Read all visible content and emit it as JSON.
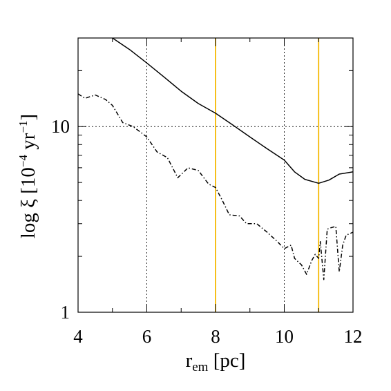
{
  "chart_data": {
    "type": "line",
    "title": "",
    "xlabel": {
      "base": "r",
      "subscript": "em",
      "unit": " [pc]"
    },
    "ylabel": {
      "prefix": "log ξ [10",
      "exponent": "−4",
      "middle": " yr",
      "exponent2": "−1",
      "suffix": "]"
    },
    "xlim": [
      4,
      12
    ],
    "ylim": [
      1,
      30
    ],
    "yscale": "log",
    "x_ticks": [
      "4",
      "6",
      "8",
      "10",
      "12"
    ],
    "y_ticks": [
      "1",
      "10"
    ],
    "grid": false,
    "reference_lines": {
      "dotted_vertical_x": [
        6,
        10
      ],
      "dotted_horizontal_y": [
        10
      ],
      "highlight_vertical_x": [
        8,
        11
      ],
      "highlight_color": "#F5B800"
    },
    "series": [
      {
        "style": "solid",
        "x": [
          5.0,
          5.5,
          6.0,
          6.5,
          7.0,
          7.5,
          8.0,
          8.5,
          9.0,
          9.5,
          10.0,
          10.3,
          10.6,
          11.0,
          11.3,
          11.6,
          12.0
        ],
        "y": [
          30,
          26,
          22,
          18.5,
          15.5,
          13.3,
          11.8,
          10.2,
          8.8,
          7.6,
          6.6,
          5.7,
          5.2,
          4.95,
          5.15,
          5.55,
          5.7
        ]
      },
      {
        "style": "dash-dot",
        "x": [
          4.0,
          4.2,
          4.5,
          4.8,
          5.0,
          5.3,
          5.6,
          6.0,
          6.3,
          6.6,
          6.9,
          7.2,
          7.5,
          7.8,
          8.0,
          8.2,
          8.4,
          8.7,
          8.9,
          9.2,
          9.5,
          9.8,
          10.0,
          10.2,
          10.3,
          10.5,
          10.65,
          10.8,
          10.9,
          11.0,
          11.05,
          11.15,
          11.25,
          11.35,
          11.5,
          11.6,
          11.7,
          11.8,
          12.0
        ],
        "y": [
          15,
          14.2,
          14.8,
          14.0,
          13.0,
          10.5,
          10.0,
          8.8,
          7.3,
          6.8,
          5.3,
          6.0,
          5.8,
          4.9,
          4.7,
          4.0,
          3.35,
          3.3,
          3.0,
          3.0,
          2.7,
          2.4,
          2.2,
          2.3,
          1.95,
          1.8,
          1.6,
          1.9,
          2.05,
          1.95,
          2.4,
          1.5,
          2.8,
          2.85,
          2.9,
          1.65,
          2.3,
          2.6,
          2.7
        ]
      }
    ]
  }
}
